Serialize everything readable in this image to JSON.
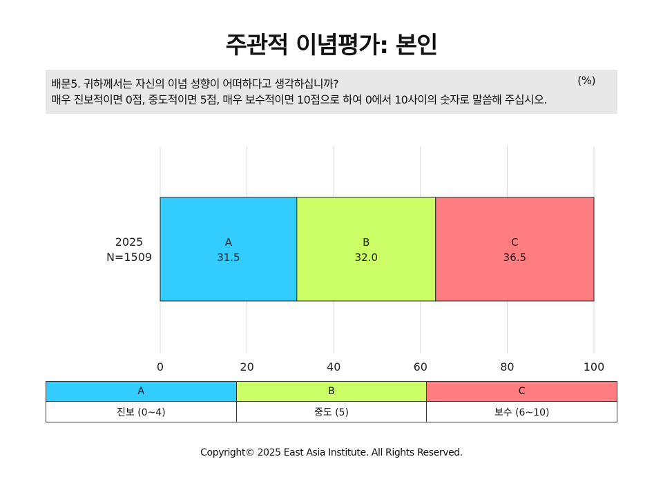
{
  "title": "주관적 이념평가: 본인",
  "question": {
    "line1": "배문5. 귀하께서는 자신의 이념 성향이 어떠하다고 생각하십니까?",
    "line2": "매우 진보적이면 0점, 중도적이면 5점, 매우 보수적이면 10점으로 하여 0에서 10사이의 숫자로 말씀해 주십시오.",
    "unit": "(%)"
  },
  "chart_data": {
    "type": "bar",
    "orientation": "horizontal",
    "stacked": true,
    "categories": [
      "2025\nN=1509"
    ],
    "category_lines": [
      [
        "2025",
        "N=1509"
      ]
    ],
    "series": [
      {
        "name": "A",
        "values": [
          31.5
        ],
        "color": "#33ccff"
      },
      {
        "name": "B",
        "values": [
          32.0
        ],
        "color": "#ccff66"
      },
      {
        "name": "C",
        "values": [
          36.5
        ],
        "color": "#ff7c80"
      }
    ],
    "xlim": [
      0,
      100
    ],
    "xticks": [
      0,
      20,
      40,
      60,
      80,
      100
    ],
    "grid": true
  },
  "legend_table": {
    "keys": [
      {
        "label": "A",
        "color": "#33ccff"
      },
      {
        "label": "B",
        "color": "#ccff66"
      },
      {
        "label": "C",
        "color": "#ff7c80"
      }
    ],
    "descriptions": [
      "진보 (0~4)",
      "중도 (5)",
      "보수 (6~10)"
    ]
  },
  "copyright": "Copyright© 2025 East Asia Institute. All Rights Reserved."
}
